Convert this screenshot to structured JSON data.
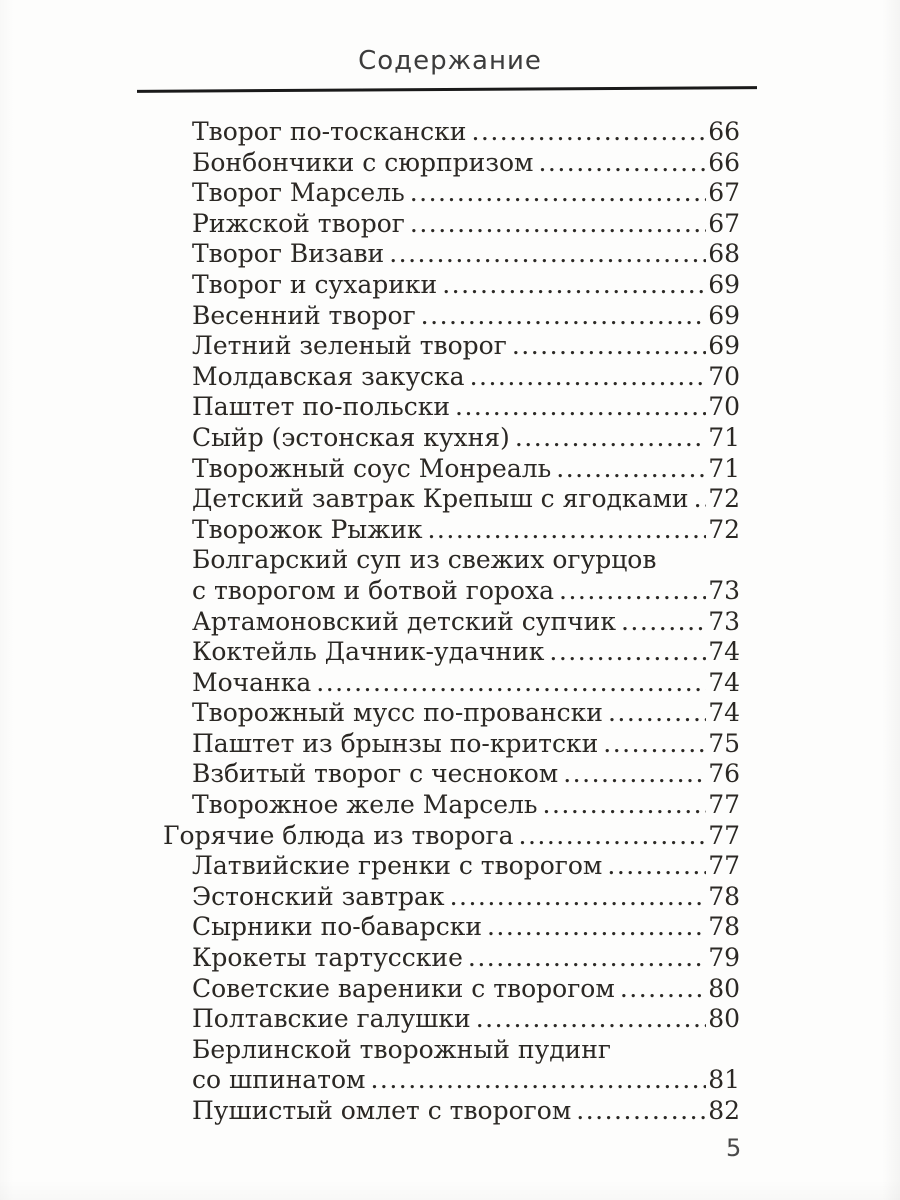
{
  "page": {
    "title": "Содержание",
    "page_number": "5"
  },
  "toc": {
    "rows": [
      {
        "text": "Творог по-тоскански",
        "page": "66",
        "level": "item"
      },
      {
        "text": "Бонбончики с сюрпризом",
        "page": "66",
        "level": "item"
      },
      {
        "text": "Творог Марсель",
        "page": "67",
        "level": "item"
      },
      {
        "text": "Рижской творог",
        "page": "67",
        "level": "item"
      },
      {
        "text": "Творог Визави",
        "page": "68",
        "level": "item"
      },
      {
        "text": "Творог и сухарики",
        "page": "69",
        "level": "item"
      },
      {
        "text": "Весенний творог",
        "page": "69",
        "level": "item"
      },
      {
        "text": "Летний зеленый творог",
        "page": "69",
        "level": "item"
      },
      {
        "text": "Молдавская закуска",
        "page": "70",
        "level": "item"
      },
      {
        "text": "Паштет по-польски",
        "page": "70",
        "level": "item"
      },
      {
        "text": "Сыйр (эстонская кухня)",
        "page": "71",
        "level": "item"
      },
      {
        "text": "Творожный соус Монреаль",
        "page": "71",
        "level": "item"
      },
      {
        "text": "Детский завтрак Крепыш с ягодками",
        "page": "72",
        "level": "item"
      },
      {
        "text": "Творожок Рыжик",
        "page": "72",
        "level": "item"
      },
      {
        "text": "Болгарский суп из свежих огурцов",
        "page": "",
        "level": "item"
      },
      {
        "text": "с творогом и ботвой гороха",
        "page": "73",
        "level": "item"
      },
      {
        "text": "Артамоновский детский супчик",
        "page": "73",
        "level": "item"
      },
      {
        "text": "Коктейль Дачник-удачник",
        "page": "74",
        "level": "item"
      },
      {
        "text": "Мочанка",
        "page": "74",
        "level": "item"
      },
      {
        "text": "Творожный мусс по-провански",
        "page": "74",
        "level": "item"
      },
      {
        "text": "Паштет из брынзы по-критски",
        "page": "75",
        "level": "item"
      },
      {
        "text": "Взбитый творог с чесноком",
        "page": "76",
        "level": "item"
      },
      {
        "text": "Творожное желе Марсель",
        "page": "77",
        "level": "item"
      },
      {
        "text": "Горячие блюда из творога",
        "page": "77",
        "level": "section"
      },
      {
        "text": "Латвийские гренки с творогом",
        "page": "77",
        "level": "item"
      },
      {
        "text": "Эстонский завтрак",
        "page": "78",
        "level": "item"
      },
      {
        "text": "Сырники по-баварски",
        "page": "78",
        "level": "item"
      },
      {
        "text": "Крокеты тартусские",
        "page": "79",
        "level": "item"
      },
      {
        "text": "Советские вареники с творогом",
        "page": "80",
        "level": "item"
      },
      {
        "text": "Полтавские галушки",
        "page": "80",
        "level": "item"
      },
      {
        "text": "Берлинской творожный пудинг",
        "page": "",
        "level": "item"
      },
      {
        "text": "со шпинатом",
        "page": "81",
        "level": "item"
      },
      {
        "text": "Пушистый омлет с творогом",
        "page": "82",
        "level": "item"
      }
    ]
  }
}
